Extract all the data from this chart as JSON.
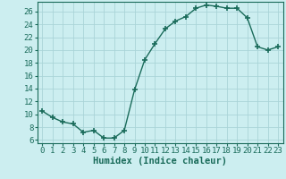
{
  "x": [
    0,
    1,
    2,
    3,
    4,
    5,
    6,
    7,
    8,
    9,
    10,
    11,
    12,
    13,
    14,
    15,
    16,
    17,
    18,
    19,
    20,
    21,
    22,
    23
  ],
  "y": [
    10.5,
    9.5,
    8.8,
    8.5,
    7.2,
    7.5,
    6.3,
    6.3,
    7.5,
    13.8,
    18.5,
    21.0,
    23.3,
    24.5,
    25.2,
    26.5,
    27.0,
    26.8,
    26.5,
    26.5,
    25.0,
    20.5,
    20.0,
    20.5
  ],
  "line_color": "#1a6b5a",
  "marker": "+",
  "marker_size": 4,
  "bg_color": "#cceef0",
  "grid_color": "#aad4d8",
  "xlabel": "Humidex (Indice chaleur)",
  "xlim": [
    -0.5,
    23.5
  ],
  "ylim": [
    5.5,
    27.5
  ],
  "yticks": [
    6,
    8,
    10,
    12,
    14,
    16,
    18,
    20,
    22,
    24,
    26
  ],
  "xticks": [
    0,
    1,
    2,
    3,
    4,
    5,
    6,
    7,
    8,
    9,
    10,
    11,
    12,
    13,
    14,
    15,
    16,
    17,
    18,
    19,
    20,
    21,
    22,
    23
  ],
  "tick_fontsize": 6.5,
  "xlabel_fontsize": 7.5,
  "linewidth": 1.0,
  "marker_linewidth": 1.2
}
